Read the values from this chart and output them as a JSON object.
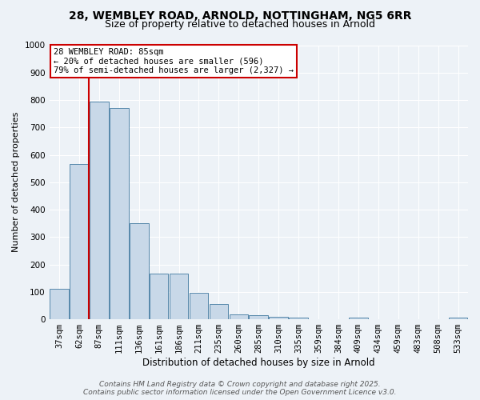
{
  "title1": "28, WEMBLEY ROAD, ARNOLD, NOTTINGHAM, NG5 6RR",
  "title2": "Size of property relative to detached houses in Arnold",
  "xlabel": "Distribution of detached houses by size in Arnold",
  "ylabel": "Number of detached properties",
  "categories": [
    "37sqm",
    "62sqm",
    "87sqm",
    "111sqm",
    "136sqm",
    "161sqm",
    "186sqm",
    "211sqm",
    "235sqm",
    "260sqm",
    "285sqm",
    "310sqm",
    "335sqm",
    "359sqm",
    "384sqm",
    "409sqm",
    "434sqm",
    "459sqm",
    "483sqm",
    "508sqm",
    "533sqm"
  ],
  "values": [
    112,
    566,
    793,
    770,
    350,
    167,
    167,
    97,
    55,
    18,
    15,
    10,
    5,
    0,
    0,
    7,
    0,
    0,
    0,
    0,
    7
  ],
  "bar_color": "#c8d8e8",
  "bar_edge_color": "#5588aa",
  "vline_index": 2,
  "vline_color": "#cc0000",
  "annotation_line1": "28 WEMBLEY ROAD: 85sqm",
  "annotation_line2": "← 20% of detached houses are smaller (596)",
  "annotation_line3": "79% of semi-detached houses are larger (2,327) →",
  "annotation_box_color": "#ffffff",
  "annotation_box_edge_color": "#cc0000",
  "ylim": [
    0,
    1000
  ],
  "yticks": [
    0,
    100,
    200,
    300,
    400,
    500,
    600,
    700,
    800,
    900,
    1000
  ],
  "background_color": "#edf2f7",
  "grid_color": "#ffffff",
  "footer1": "Contains HM Land Registry data © Crown copyright and database right 2025.",
  "footer2": "Contains public sector information licensed under the Open Government Licence v3.0.",
  "title1_fontsize": 10,
  "title2_fontsize": 9,
  "xlabel_fontsize": 8.5,
  "ylabel_fontsize": 8,
  "tick_fontsize": 7.5,
  "annotation_fontsize": 7.5,
  "footer_fontsize": 6.5
}
